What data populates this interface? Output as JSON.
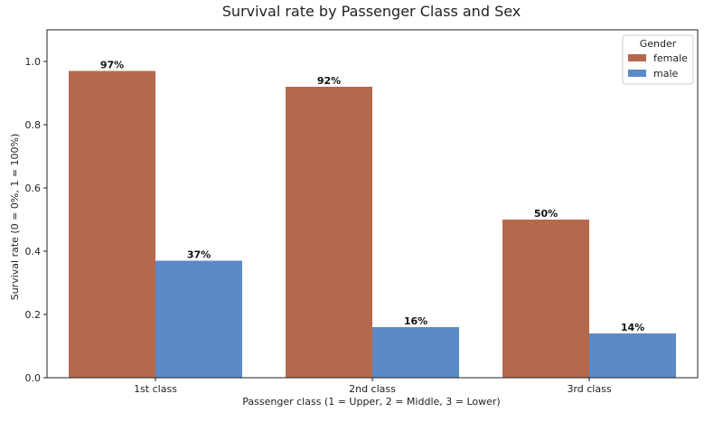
{
  "chart_data": {
    "type": "bar",
    "title": "Survival rate by Passenger Class and Sex",
    "xlabel": "Passenger class (1 = Upper, 2 = Middle, 3 = Lower)",
    "ylabel": "Survival rate (0 = 0%, 1 = 100%)",
    "categories": [
      "1st class",
      "2nd class",
      "3rd class"
    ],
    "ylim": [
      0,
      1.1
    ],
    "yticks": [
      0.0,
      0.2,
      0.4,
      0.6,
      0.8,
      1.0
    ],
    "ytick_labels": [
      "0.0",
      "0.2",
      "0.4",
      "0.6",
      "0.8",
      "1.0"
    ],
    "series": [
      {
        "name": "female",
        "values": [
          0.97,
          0.92,
          0.5
        ],
        "labels": [
          "97%",
          "92%",
          "50%"
        ],
        "color": "#b5694c"
      },
      {
        "name": "male",
        "values": [
          0.37,
          0.16,
          0.14
        ],
        "labels": [
          "37%",
          "16%",
          "14%"
        ],
        "color": "#5b8ac6"
      }
    ],
    "legend": {
      "title": "Gender",
      "position": "top-right"
    }
  }
}
